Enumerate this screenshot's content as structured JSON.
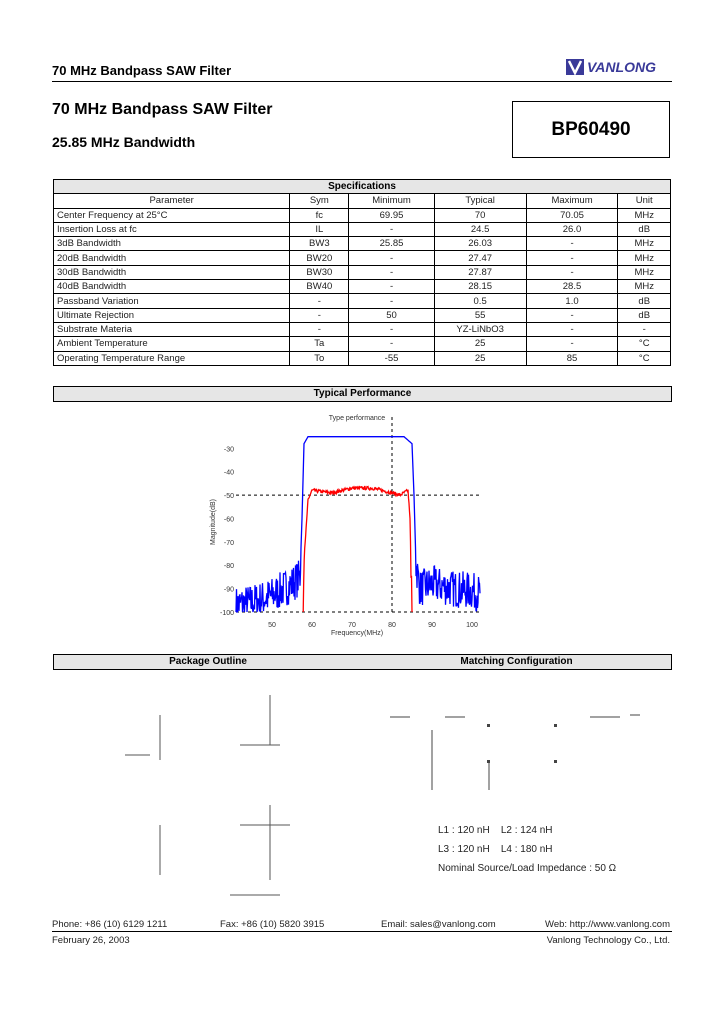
{
  "header": {
    "title": "70 MHz Bandpass SAW Filter",
    "logo_text": "VANLONG",
    "brand_color": "#3a3a99"
  },
  "product": {
    "title": "70 MHz Bandpass SAW Filter",
    "subtitle": "25.85 MHz Bandwidth",
    "part_number": "BP60490"
  },
  "specifications": {
    "title": "Specifications",
    "columns": [
      "Parameter",
      "Sym",
      "Minimum",
      "Typical",
      "Maximum",
      "Unit"
    ],
    "rows": [
      [
        "Center Frequency at 25°C",
        "fc",
        "69.95",
        "70",
        "70.05",
        "MHz"
      ],
      [
        "Insertion Loss at fc",
        "IL",
        "-",
        "24.5",
        "26.0",
        "dB"
      ],
      [
        "3dB Bandwidth",
        "BW3",
        "25.85",
        "26.03",
        "-",
        "MHz"
      ],
      [
        "20dB Bandwidth",
        "BW20",
        "-",
        "27.47",
        "-",
        "MHz"
      ],
      [
        "30dB Bandwidth",
        "BW30",
        "-",
        "27.87",
        "-",
        "MHz"
      ],
      [
        "40dB Bandwidth",
        "BW40",
        "-",
        "28.15",
        "28.5",
        "MHz"
      ],
      [
        "Passband Variation",
        "-",
        "-",
        "0.5",
        "1.0",
        "dB"
      ],
      [
        "Ultimate Rejection",
        "-",
        "50",
        "55",
        "-",
        "dB"
      ],
      [
        "Substrate Materia",
        "-",
        "-",
        "YZ-LiNbO3",
        "-",
        "-"
      ],
      [
        "Ambient Temperature",
        "Ta",
        "-",
        "25",
        "-",
        "°C"
      ],
      [
        "Operating Temperature Range",
        "To",
        "-55",
        "25",
        "85",
        "°C"
      ]
    ]
  },
  "performance": {
    "section_title": "Typical Performance"
  },
  "chart_data": {
    "type": "line",
    "title": "Type performance",
    "xlabel": "Frequency(MHz)",
    "ylabel": "Magnitude(dB)",
    "xlim": [
      41,
      102
    ],
    "ylim": [
      -100,
      -23
    ],
    "xticks": [
      50,
      60,
      70,
      80,
      90,
      100
    ],
    "yticks": [
      -30,
      -40,
      -50,
      -60,
      -70,
      -80,
      -90,
      -100
    ],
    "reference_lines": {
      "horizontal": [
        -50,
        -100
      ],
      "vertical": [
        80
      ]
    },
    "grid": false,
    "series": [
      {
        "color": "#0000ff",
        "points": [
          [
            41,
            -97
          ],
          [
            45,
            -96
          ],
          [
            50,
            -93
          ],
          [
            55,
            -88
          ],
          [
            57,
            -85
          ],
          [
            57.5,
            -60
          ],
          [
            58,
            -28
          ],
          [
            59,
            -25
          ],
          [
            70,
            -25
          ],
          [
            83,
            -25
          ],
          [
            85,
            -28
          ],
          [
            85.5,
            -50
          ],
          [
            86,
            -80
          ],
          [
            87,
            -90
          ],
          [
            90,
            -88
          ],
          [
            95,
            -90
          ],
          [
            100,
            -91
          ],
          [
            102,
            -92
          ]
        ]
      },
      {
        "color": "#ff0000",
        "points": [
          [
            57.8,
            -100
          ],
          [
            58.3,
            -70
          ],
          [
            59,
            -52
          ],
          [
            60,
            -48
          ],
          [
            65,
            -49
          ],
          [
            70,
            -47
          ],
          [
            75,
            -47
          ],
          [
            80,
            -49
          ],
          [
            82,
            -50
          ],
          [
            84,
            -48
          ],
          [
            84.5,
            -60
          ],
          [
            85,
            -100
          ]
        ]
      }
    ]
  },
  "package": {
    "section_title": "Package Outline"
  },
  "matching": {
    "section_title": "Matching Configuration",
    "line1": "L1 : 120 nH    L2 : 124 nH",
    "line2": "L3 : 120 nH    L4 : 180 nH",
    "impedance": "Nominal Source/Load Impedance : 50 Ω"
  },
  "footer": {
    "phone": "Phone: +86 (10) 6129 1211",
    "fax": "Fax: +86 (10) 5820 3915",
    "email": "Email: sales@vanlong.com",
    "web": "Web: http://www.vanlong.com",
    "date": "February 26, 2003",
    "company": "Vanlong Technology Co., Ltd."
  }
}
